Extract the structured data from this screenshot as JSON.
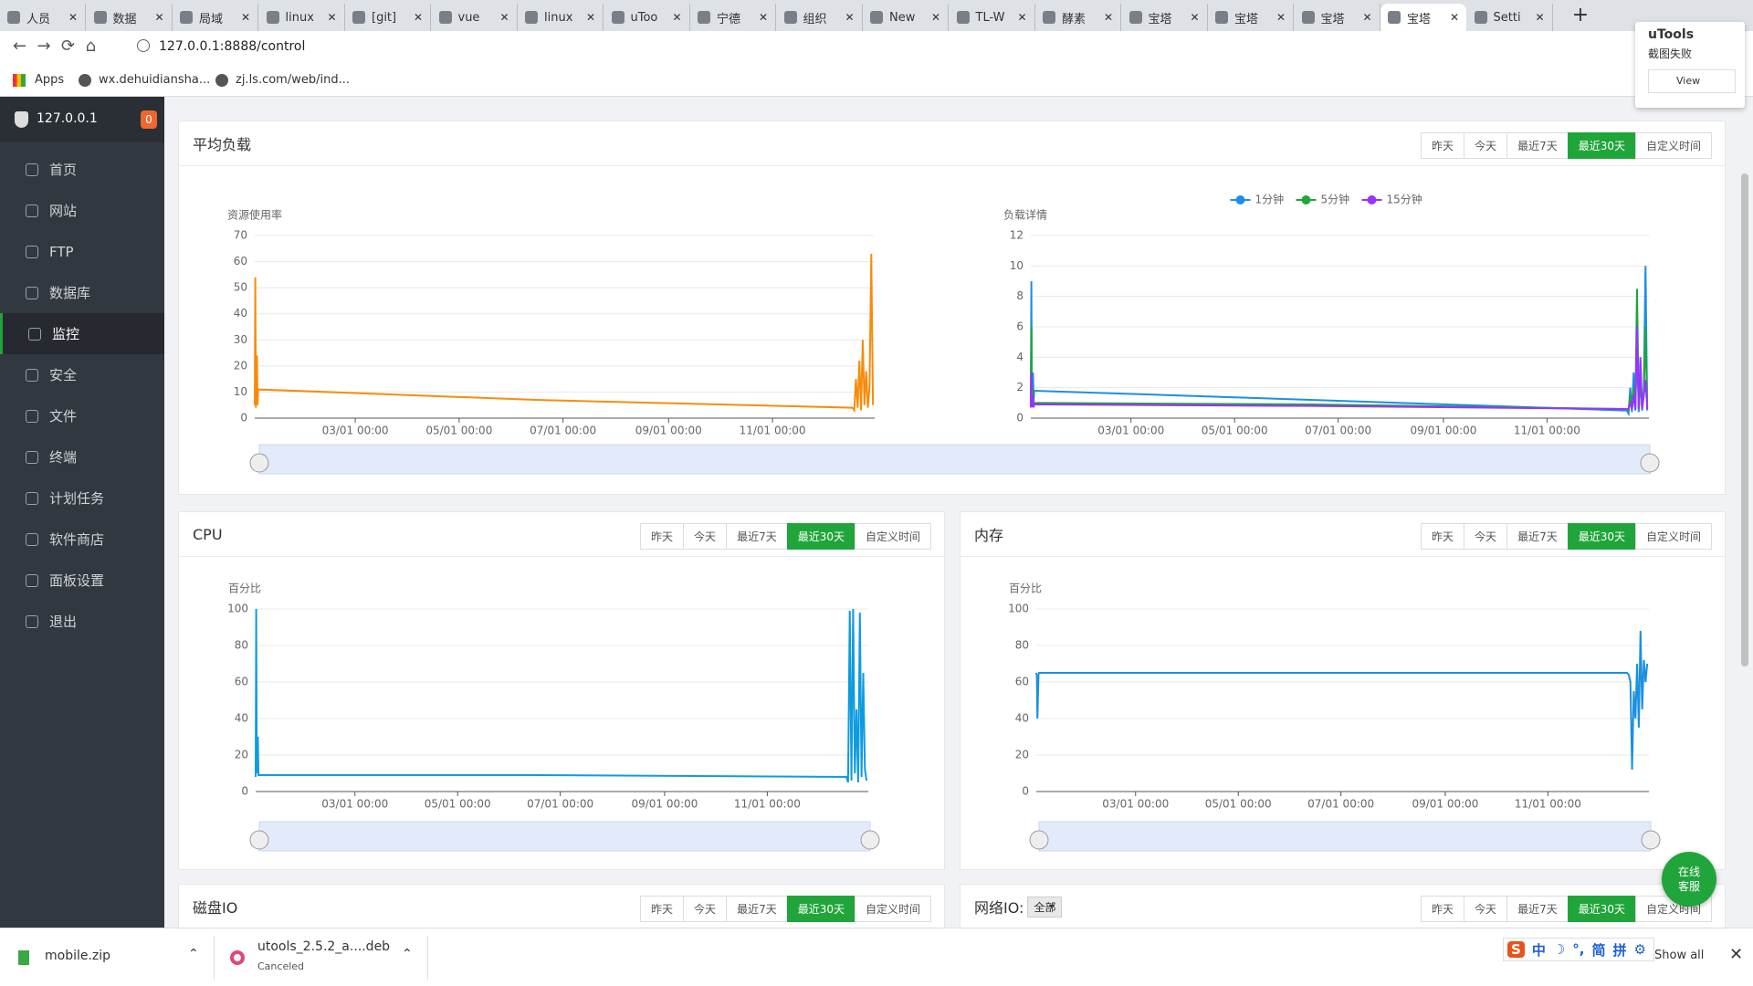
{
  "browser": {
    "tabs": [
      "人员",
      "数据",
      "局域",
      "linux",
      "[git]",
      "vue",
      "linux",
      "uToo",
      "宁德",
      "组织",
      "New",
      "TL-W",
      "酵素",
      "宝塔",
      "宝塔",
      "宝塔",
      "宝塔",
      "Setti"
    ],
    "active_tab": 16,
    "address": "127.0.0.1:8888/control",
    "bookmarks": [
      "Apps",
      "wx.dehuidiansha...",
      "zj.ls.com/web/ind..."
    ]
  },
  "popup": {
    "title": "uTools",
    "message": "截图失败",
    "button": "View"
  },
  "sidebar": {
    "host": "127.0.0.1",
    "badge": 0,
    "items": [
      "首页",
      "网站",
      "FTP",
      "数据库",
      "监控",
      "安全",
      "文件",
      "终端",
      "计划任务",
      "软件商店",
      "面板设置",
      "退出"
    ],
    "active": 4
  },
  "panels": [
    {
      "title": "平均负载",
      "buttons": [
        "昨天",
        "今天",
        "最近7天",
        "最近30天",
        "自定义时间"
      ],
      "active": 3,
      "charts": [
        {
          "type": "line",
          "ylabel": "资源使用率",
          "x": [
            "01/01 00:00",
            "01/01 08:00",
            "01/01 16:00",
            "01/02 08:00",
            "01/02 16:00",
            "01/03 00:00",
            "06/15 00:00",
            "12/18 00:00",
            "12/19 00:00",
            "12/20 00:00",
            "12/21 00:00",
            "12/22 00:00",
            "12/23 00:00",
            "12/24 00:00",
            "12/25 00:00",
            "12/26 00:00",
            "12/27 00:00",
            "12/28 00:00",
            "12/29 00:00",
            "12/30 00:00"
          ],
          "xlim": [
            "01/01 00:00",
            "12/31 00:00"
          ],
          "xticks": [
            "03/01 00:00",
            "05/01 00:00",
            "07/01 00:00",
            "09/01 00:00",
            "11/01 00:00"
          ],
          "ylim": [
            0,
            70
          ],
          "yticks": [
            0,
            10,
            20,
            30,
            40,
            50,
            60,
            70
          ],
          "grid": true,
          "color": "#f78c0c",
          "values": [
            5,
            54,
            4,
            24,
            5,
            11,
            7,
            4,
            3,
            15,
            4,
            22,
            3,
            30,
            5,
            18,
            4,
            12,
            63,
            5
          ]
        },
        {
          "type": "line",
          "ylabel": "负载详情",
          "x": [
            "01/01 00:00",
            "01/01 08:00",
            "01/01 16:00",
            "01/02 08:00",
            "01/02 16:00",
            "01/03 00:00",
            "06/15 00:00",
            "12/18 00:00",
            "12/19 00:00",
            "12/20 00:00",
            "12/21 00:00",
            "12/22 00:00",
            "12/23 00:00",
            "12/24 00:00",
            "12/25 00:00",
            "12/26 00:00",
            "12/27 00:00",
            "12/28 00:00",
            "12/29 00:00",
            "12/30 00:00"
          ],
          "xlim": [
            "01/01 00:00",
            "12/31 00:00"
          ],
          "xticks": [
            "03/01 00:00",
            "05/01 00:00",
            "07/01 00:00",
            "09/01 00:00",
            "11/01 00:00"
          ],
          "ylim": [
            0,
            12
          ],
          "yticks": [
            0,
            2,
            4,
            6,
            8,
            10,
            12
          ],
          "grid": true,
          "series": [
            {
              "name": "1分钟",
              "color": "#1c8ee6",
              "values": [
                1,
                9,
                1,
                3,
                1,
                1.8,
                1.2,
                0.5,
                0.3,
                2,
                0.4,
                3,
                0.5,
                5,
                0.4,
                3,
                0.5,
                2,
                10,
                0.5
              ]
            },
            {
              "name": "5分钟",
              "color": "#20a53a",
              "values": [
                0.8,
                6,
                0.8,
                2,
                0.8,
                1,
                0.9,
                0.6,
                0.5,
                1.5,
                0.6,
                2,
                0.6,
                8.5,
                0.6,
                2.5,
                0.6,
                1.5,
                6,
                0.7
              ]
            },
            {
              "name": "15分钟",
              "color": "#9933ff",
              "values": [
                0.7,
                3,
                0.7,
                1.5,
                0.7,
                0.9,
                0.8,
                0.6,
                0.6,
                1,
                0.6,
                1.5,
                0.6,
                6,
                0.6,
                4,
                0.6,
                1.5,
                2.5,
                0.6
              ]
            }
          ]
        }
      ]
    },
    {
      "title": "CPU",
      "buttons": [
        "昨天",
        "今天",
        "最近7天",
        "最近30天",
        "自定义时间"
      ],
      "active": 3,
      "charts": [
        {
          "type": "line",
          "ylabel": "百分比",
          "x": [
            "01/01 00:00",
            "01/01 08:00",
            "01/01 16:00",
            "01/02 08:00",
            "01/02 16:00",
            "01/03 00:00",
            "06/15 00:00",
            "12/18 00:00",
            "12/19 00:00",
            "12/20 00:00",
            "12/21 00:00",
            "12/22 00:00",
            "12/23 00:00",
            "12/24 00:00",
            "12/25 00:00",
            "12/26 00:00",
            "12/27 00:00",
            "12/28 00:00",
            "12/29 00:00",
            "12/30 00:00"
          ],
          "xlim": [
            "01/01 00:00",
            "12/31 00:00"
          ],
          "xticks": [
            "03/01 00:00",
            "05/01 00:00",
            "07/01 00:00",
            "09/01 00:00",
            "11/01 00:00"
          ],
          "ylim": [
            0,
            100
          ],
          "yticks": [
            0,
            20,
            40,
            60,
            80,
            100
          ],
          "grid": true,
          "color": "#0f9be0",
          "values": [
            8,
            100,
            10,
            30,
            9,
            9,
            9,
            8,
            5,
            99,
            6,
            100,
            10,
            45,
            5,
            98,
            8,
            65,
            12,
            6
          ]
        }
      ]
    },
    {
      "title": "内存",
      "buttons": [
        "昨天",
        "今天",
        "最近7天",
        "最近30天",
        "自定义时间"
      ],
      "active": 3,
      "charts": [
        {
          "type": "line",
          "ylabel": "百分比",
          "x": [
            "01/01 00:00",
            "01/01 08:00",
            "01/01 16:00",
            "01/02 08:00",
            "01/02 16:00",
            "01/03 00:00",
            "06/15 00:00",
            "12/18 00:00",
            "12/19 00:00",
            "12/20 00:00",
            "12/21 00:00",
            "12/22 00:00",
            "12/23 00:00",
            "12/24 00:00",
            "12/25 00:00",
            "12/26 00:00",
            "12/27 00:00",
            "12/28 00:00",
            "12/29 00:00",
            "12/30 00:00"
          ],
          "xlim": [
            "01/01 00:00",
            "12/31 00:00"
          ],
          "xticks": [
            "03/01 00:00",
            "05/01 00:00",
            "07/01 00:00",
            "09/01 00:00",
            "11/01 00:00"
          ],
          "ylim": [
            0,
            100
          ],
          "yticks": [
            0,
            20,
            40,
            60,
            80,
            100
          ],
          "grid": true,
          "color": "#1a90e0",
          "values": [
            65,
            63,
            40,
            64,
            65,
            65,
            65,
            65,
            64,
            60,
            12,
            55,
            40,
            70,
            35,
            88,
            45,
            72,
            60,
            70
          ]
        }
      ]
    },
    {
      "title": "磁盘IO",
      "buttons": [
        "昨天",
        "今天",
        "最近7天",
        "最近30天",
        "自定义时间"
      ],
      "active": 3
    },
    {
      "title": "网络IO:",
      "select": "全部",
      "buttons": [
        "昨天",
        "今天",
        "最近7天",
        "最近30天",
        "自定义时间"
      ],
      "active": 3
    }
  ],
  "chat": [
    "在线",
    "客服"
  ],
  "downloads": [
    {
      "name": "mobile.zip"
    },
    {
      "name": "utools_2.5.2_a....deb",
      "status": "Canceled"
    }
  ],
  "ime": [
    "中",
    "简",
    "拼"
  ],
  "show_all": "Show all"
}
